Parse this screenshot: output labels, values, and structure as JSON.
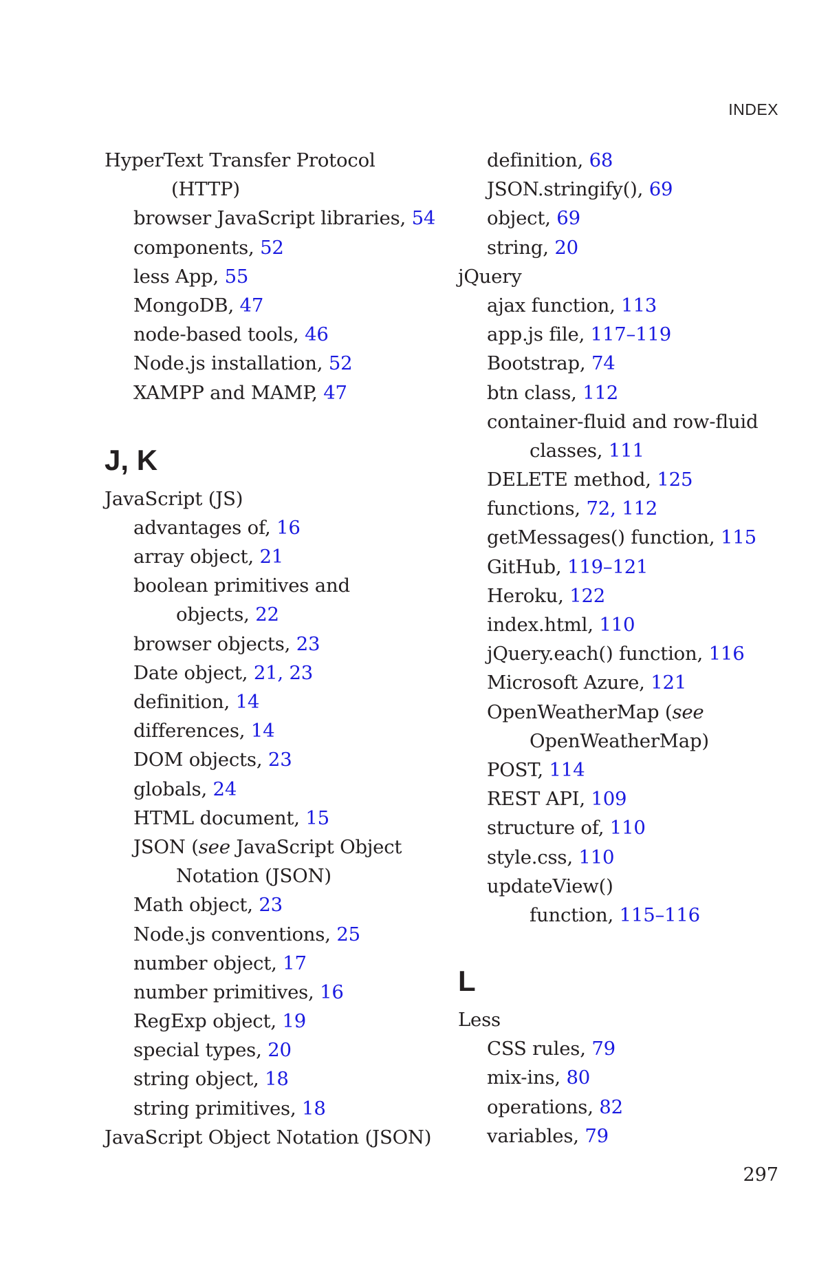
{
  "running_head": "INDEX",
  "page_number": "297",
  "left_column": {
    "http": {
      "term_line1": "HyperText Transfer Protocol",
      "term_line2": "(HTTP)",
      "subs": [
        {
          "text": "browser JavaScript libraries, ",
          "refs": "54"
        },
        {
          "text": "components, ",
          "refs": "52"
        },
        {
          "text": "less App, ",
          "refs": "55"
        },
        {
          "text": "MongoDB, ",
          "refs": "47"
        },
        {
          "text": "node-based tools, ",
          "refs": "46"
        },
        {
          "text": "Node.js installation, ",
          "refs": "52"
        },
        {
          "text": "XAMPP and MAMP, ",
          "refs": "47"
        }
      ]
    },
    "section_heading": "J, K",
    "js": {
      "term": "JavaScript (JS)",
      "advantages": {
        "text": "advantages of, ",
        "refs": "16"
      },
      "array": {
        "text": "array object, ",
        "refs": "21"
      },
      "boolean_line1": "boolean primitives and",
      "boolean_line2": {
        "text": "objects, ",
        "refs": "22"
      },
      "browser_objects": {
        "text": "browser objects, ",
        "refs": "23"
      },
      "date": {
        "text": "Date object, ",
        "refs": "21, 23"
      },
      "definition": {
        "text": "definition, ",
        "refs": "14"
      },
      "differences": {
        "text": "differences, ",
        "refs": "14"
      },
      "dom": {
        "text": "DOM objects, ",
        "refs": "23"
      },
      "globals": {
        "text": "globals, ",
        "refs": "24"
      },
      "html_document": {
        "text": "HTML document, ",
        "refs": "15"
      },
      "json_line1_a": "JSON (",
      "json_line1_see": "see",
      "json_line1_b": " JavaScript Object",
      "json_line2": "Notation (JSON)",
      "math": {
        "text": "Math object, ",
        "refs": "23"
      },
      "node_conventions": {
        "text": "Node.js conventions, ",
        "refs": "25"
      },
      "number_object": {
        "text": "number object, ",
        "refs": "17"
      },
      "number_primitives": {
        "text": "number primitives, ",
        "refs": "16"
      },
      "regexp": {
        "text": "RegExp object, ",
        "refs": "19"
      },
      "special_types": {
        "text": "special types, ",
        "refs": "20"
      },
      "string_object": {
        "text": "string object, ",
        "refs": "18"
      },
      "string_primitives": {
        "text": "string primitives, ",
        "refs": "18"
      }
    },
    "json_term": "JavaScript Object Notation (JSON)"
  },
  "right_column": {
    "json_subs": [
      {
        "text": "definition, ",
        "refs": "68"
      },
      {
        "text": "JSON.stringify(), ",
        "refs": "69"
      },
      {
        "text": "object, ",
        "refs": "69"
      },
      {
        "text": "string, ",
        "refs": "20"
      }
    ],
    "jquery_term": "jQuery",
    "jquery": {
      "ajax": {
        "text": "ajax function, ",
        "refs": "113"
      },
      "appjs": {
        "text": "app.js file, ",
        "refs": "117–119"
      },
      "bootstrap": {
        "text": "Bootstrap, ",
        "refs": "74"
      },
      "btn": {
        "text": "btn class, ",
        "refs": "112"
      },
      "container_line1": "container-fluid and row-fluid",
      "container_line2": {
        "text": "classes, ",
        "refs": "111"
      },
      "delete": {
        "text": "DELETE method, ",
        "refs": "125"
      },
      "functions": {
        "text": "functions, ",
        "refs": "72, 112"
      },
      "getmessages": {
        "text": "getMessages() function, ",
        "refs": "115"
      },
      "github": {
        "text": "GitHub, ",
        "refs": "119–121"
      },
      "heroku": {
        "text": "Heroku, ",
        "refs": "122"
      },
      "index_html": {
        "text": "index.html, ",
        "refs": "110"
      },
      "each": {
        "text": "jQuery.each() function, ",
        "refs": "116"
      },
      "azure": {
        "text": "Microsoft Azure, ",
        "refs": "121"
      },
      "owm_line1_a": "OpenWeatherMap (",
      "owm_line1_see": "see",
      "owm_line2": "OpenWeatherMap)",
      "post": {
        "text": "POST, ",
        "refs": "114"
      },
      "rest": {
        "text": "REST API, ",
        "refs": "109"
      },
      "structure": {
        "text": "structure of, ",
        "refs": "110"
      },
      "stylecss": {
        "text": "style.css, ",
        "refs": "110"
      },
      "updateview_line1": "updateView()",
      "updateview_line2": {
        "text": "function, ",
        "refs": "115–116"
      }
    },
    "section_heading": "L",
    "less_term": "Less",
    "less_subs": [
      {
        "text": "CSS rules, ",
        "refs": "79"
      },
      {
        "text": "mix-ins, ",
        "refs": "80"
      },
      {
        "text": "operations, ",
        "refs": "82"
      },
      {
        "text": "variables, ",
        "refs": "79"
      }
    ]
  }
}
